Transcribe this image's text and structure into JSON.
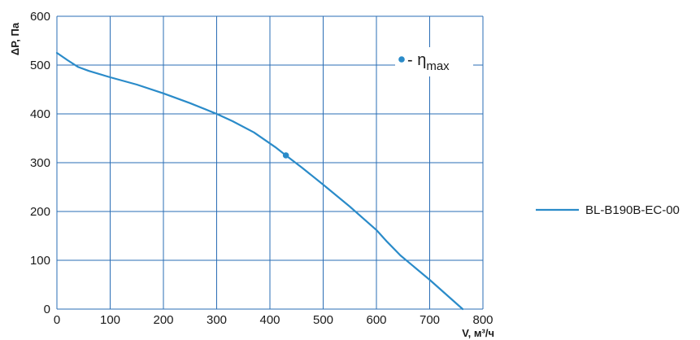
{
  "chart_data": {
    "type": "line",
    "xlabel": "V, м³/ч",
    "ylabel": "ΔP, Па",
    "xlim": [
      0,
      800
    ],
    "ylim": [
      0,
      600
    ],
    "x_ticks": [
      "0",
      "100",
      "200",
      "300",
      "400",
      "500",
      "600",
      "700",
      "800"
    ],
    "y_ticks": [
      "0",
      "100",
      "200",
      "300",
      "400",
      "500",
      "600"
    ],
    "grid": true,
    "legend_position": "right",
    "series": [
      {
        "name": "BL-B190B-EC-00",
        "color": "#2a8bc9",
        "x": [
          0,
          20,
          40,
          60,
          100,
          150,
          200,
          250,
          300,
          330,
          370,
          410,
          430,
          460,
          500,
          550,
          600,
          620,
          645,
          700,
          762
        ],
        "y": [
          525,
          510,
          496,
          488,
          475,
          460,
          442,
          422,
          400,
          385,
          362,
          332,
          315,
          290,
          255,
          210,
          162,
          138,
          110,
          60,
          0
        ]
      }
    ],
    "annotations": [
      {
        "type": "marker",
        "x": 430,
        "y": 315,
        "color": "#2a8bc9"
      }
    ],
    "legend_box": {
      "marker_color": "#2a8bc9",
      "prefix": "- η",
      "subscript": "max"
    }
  }
}
